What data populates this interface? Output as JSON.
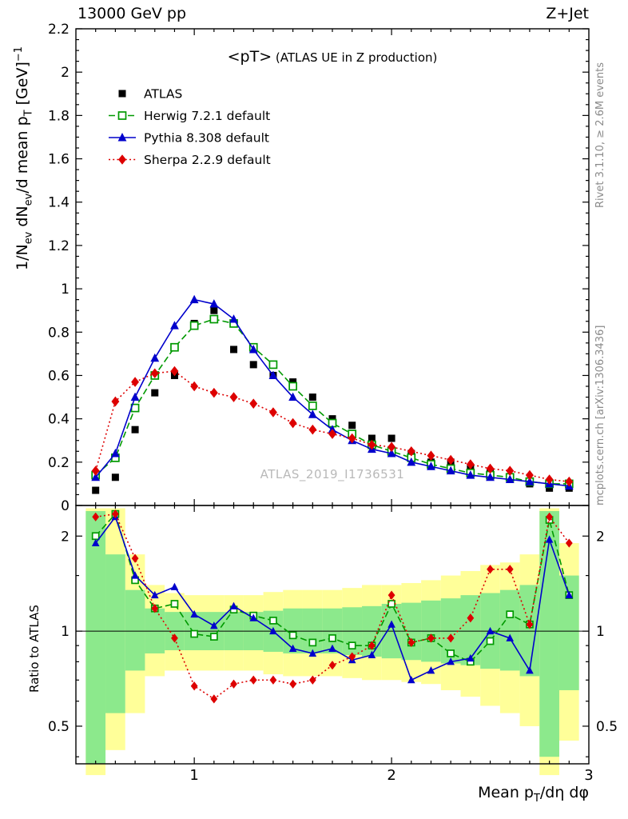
{
  "labels": {
    "header_left": "13000 GeV pp",
    "header_right": "Z+Jet",
    "title_rich": [
      [
        "<pT>",
        "big"
      ],
      [
        "  (ATLAS UE in Z production)",
        "small"
      ]
    ],
    "watermark": "ATLAS_2019_I1736531",
    "side_top": "Rivet 3.1.10, ≥ 2.6M events",
    "side_bottom": "mcplots.cern.ch [arXiv:1306.3436]",
    "ylabel_main_rich": [
      [
        "1/N"
      ],
      [
        "ev",
        "sub"
      ],
      [
        " dN"
      ],
      [
        "ev",
        "sub"
      ],
      [
        "/d mean p"
      ],
      [
        "T",
        "sub"
      ],
      [
        " [GeV]"
      ],
      [
        "−1",
        "sup"
      ]
    ],
    "ylabel_ratio": "Ratio to ATLAS",
    "xlabel_rich": [
      [
        "Mean p"
      ],
      [
        "T",
        "sub"
      ],
      [
        "/dη dφ"
      ]
    ]
  },
  "chart_data": [
    {
      "type": "line",
      "panel": "main",
      "title": "<pT> (ATLAS UE in Z production)",
      "xlabel": "Mean pT/dη dφ",
      "ylabel": "1/Nev dNev/d mean pT [GeV]^-1",
      "legend_position": "top-left",
      "xlim": [
        0.4,
        3.0
      ],
      "ylim": [
        0,
        2.2
      ],
      "xticks": [
        "1",
        "2",
        "3"
      ],
      "yticks": [
        "0",
        "0.2",
        "0.4",
        "0.6",
        "0.8",
        "1",
        "1.2",
        "1.4",
        "1.6",
        "1.8",
        "2",
        "2.2"
      ],
      "x": [
        0.5,
        0.6,
        0.7,
        0.8,
        0.9,
        1.0,
        1.1,
        1.2,
        1.3,
        1.4,
        1.5,
        1.6,
        1.7,
        1.8,
        1.9,
        2.0,
        2.1,
        2.2,
        2.3,
        2.4,
        2.5,
        2.6,
        2.7,
        2.8,
        2.9
      ],
      "series": [
        {
          "name": "ATLAS",
          "color": "#000000",
          "marker": "fsquare",
          "line": "none",
          "values": [
            0.07,
            0.13,
            0.35,
            0.52,
            0.6,
            0.84,
            0.9,
            0.72,
            0.65,
            0.6,
            0.57,
            0.5,
            0.4,
            0.37,
            0.31,
            0.31,
            0.24,
            0.2,
            0.2,
            0.17,
            0.15,
            0.13,
            0.1,
            0.08,
            0.08
          ]
        },
        {
          "name": "Herwig 7.2.1 default",
          "color": "#009900",
          "marker": "osquare",
          "line": "dash",
          "values": [
            0.14,
            0.22,
            0.45,
            0.6,
            0.73,
            0.83,
            0.86,
            0.84,
            0.73,
            0.65,
            0.55,
            0.46,
            0.38,
            0.33,
            0.28,
            0.25,
            0.22,
            0.19,
            0.17,
            0.15,
            0.14,
            0.13,
            0.11,
            0.1,
            0.1
          ]
        },
        {
          "name": "Pythia 8.308 default",
          "color": "#0000cc",
          "marker": "ftriangle",
          "line": "solid",
          "values": [
            0.13,
            0.24,
            0.5,
            0.68,
            0.83,
            0.95,
            0.93,
            0.86,
            0.72,
            0.6,
            0.5,
            0.42,
            0.35,
            0.3,
            0.26,
            0.24,
            0.2,
            0.18,
            0.16,
            0.14,
            0.13,
            0.12,
            0.11,
            0.1,
            0.09
          ]
        },
        {
          "name": "Sherpa 2.2.9 default",
          "color": "#dd0000",
          "marker": "fdiamond",
          "line": "dot",
          "values": [
            0.16,
            0.48,
            0.57,
            0.61,
            0.62,
            0.55,
            0.52,
            0.5,
            0.47,
            0.43,
            0.38,
            0.35,
            0.33,
            0.31,
            0.28,
            0.27,
            0.25,
            0.23,
            0.21,
            0.19,
            0.17,
            0.16,
            0.14,
            0.12,
            0.11
          ]
        }
      ]
    },
    {
      "type": "line",
      "panel": "ratio",
      "ylabel": "Ratio to ATLAS",
      "yscale": "log",
      "ylim": [
        0.38,
        2.5
      ],
      "yticks": [
        "0.5",
        "1",
        "2"
      ],
      "x": [
        0.5,
        0.6,
        0.7,
        0.8,
        0.9,
        1.0,
        1.1,
        1.2,
        1.3,
        1.4,
        1.5,
        1.6,
        1.7,
        1.8,
        1.9,
        2.0,
        2.1,
        2.2,
        2.3,
        2.4,
        2.5,
        2.6,
        2.7,
        2.8,
        2.9
      ],
      "series": [
        {
          "name": "Herwig 7.2.1 default",
          "color": "#009900",
          "marker": "osquare",
          "line": "dash",
          "values": [
            2.0,
            2.35,
            1.45,
            1.18,
            1.22,
            0.98,
            0.96,
            1.17,
            1.12,
            1.08,
            0.97,
            0.92,
            0.95,
            0.9,
            0.9,
            1.22,
            0.92,
            0.95,
            0.85,
            0.8,
            0.93,
            1.13,
            1.05,
            2.25,
            1.3
          ]
        },
        {
          "name": "Pythia 8.308 default",
          "color": "#0000cc",
          "marker": "ftriangle",
          "line": "solid",
          "values": [
            1.9,
            2.3,
            1.5,
            1.3,
            1.38,
            1.13,
            1.04,
            1.2,
            1.1,
            1.0,
            0.88,
            0.85,
            0.88,
            0.81,
            0.84,
            1.05,
            0.7,
            0.75,
            0.8,
            0.82,
            1.0,
            0.95,
            0.75,
            1.95,
            1.3
          ]
        },
        {
          "name": "Sherpa 2.2.9 default",
          "color": "#dd0000",
          "marker": "fdiamond",
          "line": "dot",
          "values": [
            2.3,
            2.35,
            1.7,
            1.18,
            0.95,
            0.67,
            0.61,
            0.68,
            0.7,
            0.7,
            0.68,
            0.7,
            0.78,
            0.83,
            0.9,
            1.3,
            0.92,
            0.95,
            0.95,
            1.1,
            1.57,
            1.57,
            1.05,
            2.3,
            1.9
          ]
        }
      ],
      "bands": {
        "yellow_color": "#ffff99",
        "green_color": "#8ce98c",
        "yellow_low": [
          0.35,
          0.42,
          0.55,
          0.72,
          0.75,
          0.75,
          0.75,
          0.75,
          0.75,
          0.73,
          0.72,
          0.72,
          0.72,
          0.71,
          0.7,
          0.7,
          0.69,
          0.68,
          0.65,
          0.62,
          0.58,
          0.55,
          0.5,
          0.35,
          0.45
        ],
        "yellow_high": [
          2.45,
          2.45,
          1.75,
          1.4,
          1.32,
          1.3,
          1.3,
          1.3,
          1.3,
          1.33,
          1.35,
          1.35,
          1.35,
          1.37,
          1.4,
          1.4,
          1.42,
          1.45,
          1.5,
          1.55,
          1.62,
          1.65,
          1.75,
          2.45,
          1.9
        ],
        "green_low": [
          0.38,
          0.55,
          0.75,
          0.85,
          0.87,
          0.87,
          0.87,
          0.87,
          0.87,
          0.86,
          0.85,
          0.85,
          0.85,
          0.84,
          0.83,
          0.82,
          0.81,
          0.8,
          0.79,
          0.78,
          0.76,
          0.75,
          0.72,
          0.4,
          0.65
        ],
        "green_high": [
          2.4,
          1.75,
          1.35,
          1.18,
          1.15,
          1.15,
          1.15,
          1.15,
          1.15,
          1.16,
          1.18,
          1.18,
          1.18,
          1.19,
          1.2,
          1.22,
          1.23,
          1.25,
          1.27,
          1.3,
          1.32,
          1.35,
          1.4,
          2.4,
          1.5
        ]
      }
    }
  ]
}
